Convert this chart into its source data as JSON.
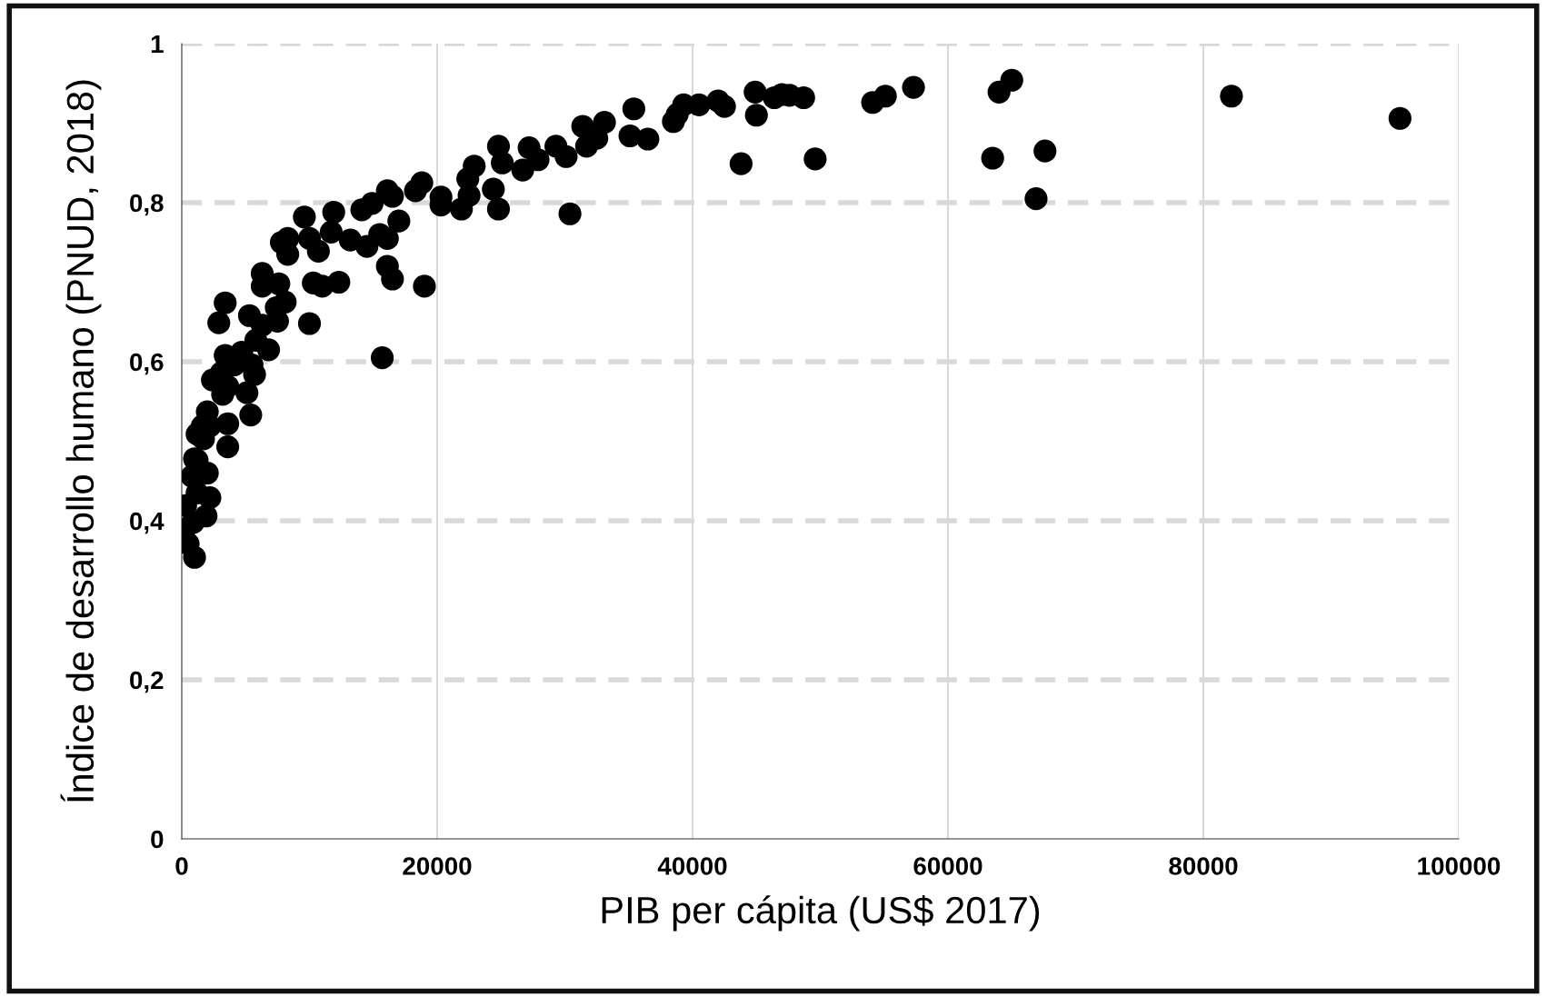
{
  "chart_data": {
    "type": "scatter",
    "xlabel": "PIB per cápita (US$ 2017)",
    "ylabel": "Índice de desarrollo humano (PNUD, 2018)",
    "xlim": [
      0,
      100000
    ],
    "xticks": [
      0,
      20000,
      40000,
      60000,
      80000,
      100000
    ],
    "ylim": [
      0,
      1
    ],
    "yticks": [
      0,
      {
        "value": 0.2,
        "label": "0,2"
      },
      {
        "value": 0.4,
        "label": "0,4"
      },
      {
        "value": 0.6,
        "label": "0,6"
      },
      {
        "value": 0.8,
        "label": "0,8"
      },
      1
    ],
    "grid": true,
    "marker": "circle",
    "legend": false,
    "series": [
      {
        "color": "#000000",
        "x": [
          95400,
          82200,
          65000,
          64000,
          63500,
          67600,
          66900,
          57300,
          55100,
          54100,
          49600,
          48700,
          47600,
          47000,
          46400,
          44900,
          45000,
          43800,
          42500,
          42000,
          40500,
          39300,
          38800,
          38500,
          36500,
          35400,
          35100,
          33100,
          32500,
          31400,
          31700,
          30400,
          30100,
          29300,
          27900,
          27200,
          26700,
          25100,
          24800,
          24800,
          24400,
          22900,
          22400,
          22500,
          21900,
          20300,
          20300,
          19000,
          18800,
          18300,
          17000,
          16500,
          16100,
          15700,
          16100,
          16500,
          16100,
          15500,
          14900,
          14100,
          14500,
          13200,
          12300,
          11900,
          11700,
          11000,
          10700,
          10300,
          10000,
          9600,
          10000,
          8300,
          8300,
          7800,
          8100,
          7600,
          7400,
          7500,
          6300,
          6300,
          6800,
          6300,
          5300,
          5800,
          5500,
          5100,
          5400,
          5700,
          4700,
          4100,
          3400,
          2900,
          3400,
          3100,
          3600,
          2400,
          3200,
          3600,
          3600,
          2000,
          1600,
          1700,
          1200,
          2200,
          2000,
          2200,
          1900,
          1200,
          1000,
          800,
          1200,
          300,
          200,
          500,
          1000,
          900
        ],
        "values": [
          0.906,
          0.934,
          0.954,
          0.939,
          0.856,
          0.865,
          0.805,
          0.945,
          0.934,
          0.926,
          0.855,
          0.932,
          0.935,
          0.936,
          0.932,
          0.939,
          0.91,
          0.849,
          0.921,
          0.928,
          0.923,
          0.923,
          0.911,
          0.902,
          0.88,
          0.918,
          0.884,
          0.901,
          0.881,
          0.896,
          0.871,
          0.786,
          0.858,
          0.871,
          0.854,
          0.869,
          0.841,
          0.85,
          0.871,
          0.792,
          0.817,
          0.846,
          0.83,
          0.809,
          0.792,
          0.797,
          0.807,
          0.695,
          0.825,
          0.815,
          0.777,
          0.808,
          0.815,
          0.605,
          0.72,
          0.704,
          0.755,
          0.76,
          0.799,
          0.791,
          0.745,
          0.753,
          0.7,
          0.788,
          0.763,
          0.695,
          0.739,
          0.699,
          0.755,
          0.782,
          0.648,
          0.755,
          0.735,
          0.75,
          0.675,
          0.698,
          0.668,
          0.651,
          0.711,
          0.695,
          0.615,
          0.646,
          0.658,
          0.627,
          0.596,
          0.561,
          0.533,
          0.584,
          0.612,
          0.596,
          0.674,
          0.649,
          0.608,
          0.586,
          0.569,
          0.577,
          0.559,
          0.522,
          0.493,
          0.537,
          0.519,
          0.503,
          0.509,
          0.519,
          0.46,
          0.429,
          0.406,
          0.476,
          0.478,
          0.456,
          0.435,
          0.419,
          0.389,
          0.371,
          0.354,
          0.398
        ]
      }
    ]
  }
}
